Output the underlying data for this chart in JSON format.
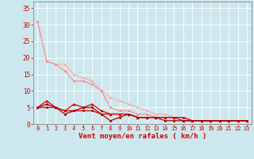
{
  "background_color": "#cce8ee",
  "grid_color": "#ffffff",
  "xlabel": "Vent moyen/en rafales ( km/h )",
  "xlabel_color": "#cc0000",
  "xlabel_fontsize": 6.5,
  "xtick_fontsize": 5.0,
  "ytick_fontsize": 5.5,
  "xlim": [
    -0.5,
    23.5
  ],
  "ylim": [
    0,
    37
  ],
  "yticks": [
    0,
    5,
    10,
    15,
    20,
    25,
    30,
    35
  ],
  "xticks": [
    0,
    1,
    2,
    3,
    4,
    5,
    6,
    7,
    8,
    9,
    10,
    11,
    12,
    13,
    14,
    15,
    16,
    17,
    18,
    19,
    20,
    21,
    22,
    23
  ],
  "lines": [
    {
      "x": [
        0,
        1,
        2,
        3,
        4,
        5,
        6,
        7,
        8,
        9,
        10,
        11,
        12,
        13,
        14,
        15,
        16,
        17,
        18,
        19,
        20,
        21,
        22,
        23
      ],
      "y": [
        31,
        19,
        18,
        18,
        15,
        14,
        13,
        10,
        8,
        7,
        6,
        5,
        4,
        3,
        3,
        2,
        2,
        1,
        1,
        1,
        1,
        1,
        1,
        1
      ],
      "color": "#ffaaaa",
      "lw": 0.8,
      "marker": "o",
      "ms": 1.8
    },
    {
      "x": [
        0,
        1,
        2,
        3,
        4,
        5,
        6,
        7,
        8,
        9,
        10,
        11,
        12,
        13,
        14,
        15,
        16,
        17,
        18,
        19,
        20,
        21,
        22,
        23
      ],
      "y": [
        31,
        19,
        18,
        16,
        13,
        13,
        12,
        10,
        5,
        4,
        4,
        3,
        3,
        2,
        2,
        2,
        1,
        1,
        1,
        1,
        1,
        1,
        1,
        1
      ],
      "color": "#ff8888",
      "lw": 0.8,
      "marker": "o",
      "ms": 1.8
    },
    {
      "x": [
        0,
        1,
        2,
        3,
        4,
        5,
        6,
        7,
        8,
        9,
        10,
        11,
        12,
        13,
        14,
        15,
        16,
        17,
        18,
        19,
        20,
        21,
        22,
        23
      ],
      "y": [
        5,
        5,
        5,
        4,
        4,
        4,
        4,
        3,
        3,
        3,
        3,
        2,
        2,
        2,
        2,
        2,
        2,
        1,
        1,
        1,
        1,
        1,
        1,
        1
      ],
      "color": "#cc0000",
      "lw": 0.9,
      "marker": "o",
      "ms": 1.8
    },
    {
      "x": [
        0,
        1,
        2,
        3,
        4,
        5,
        6,
        7,
        8,
        9,
        10,
        11,
        12,
        13,
        14,
        15,
        16,
        17,
        18,
        19,
        20,
        21,
        22,
        23
      ],
      "y": [
        5,
        7,
        5,
        4,
        6,
        5,
        6,
        4,
        3,
        3,
        3,
        2,
        2,
        2,
        2,
        2,
        1,
        1,
        1,
        1,
        1,
        1,
        1,
        1
      ],
      "color": "#dd0000",
      "lw": 0.9,
      "marker": "^",
      "ms": 2.2
    },
    {
      "x": [
        0,
        1,
        2,
        3,
        4,
        5,
        6,
        7,
        8,
        9,
        10,
        11,
        12,
        13,
        14,
        15,
        16,
        17,
        18,
        19,
        20,
        21,
        22,
        23
      ],
      "y": [
        5,
        6,
        5,
        3,
        4,
        5,
        5,
        3,
        1,
        2,
        3,
        2,
        2,
        2,
        1,
        1,
        1,
        1,
        1,
        1,
        1,
        1,
        1,
        1
      ],
      "color": "#aa0000",
      "lw": 0.9,
      "marker": "o",
      "ms": 1.8
    }
  ]
}
